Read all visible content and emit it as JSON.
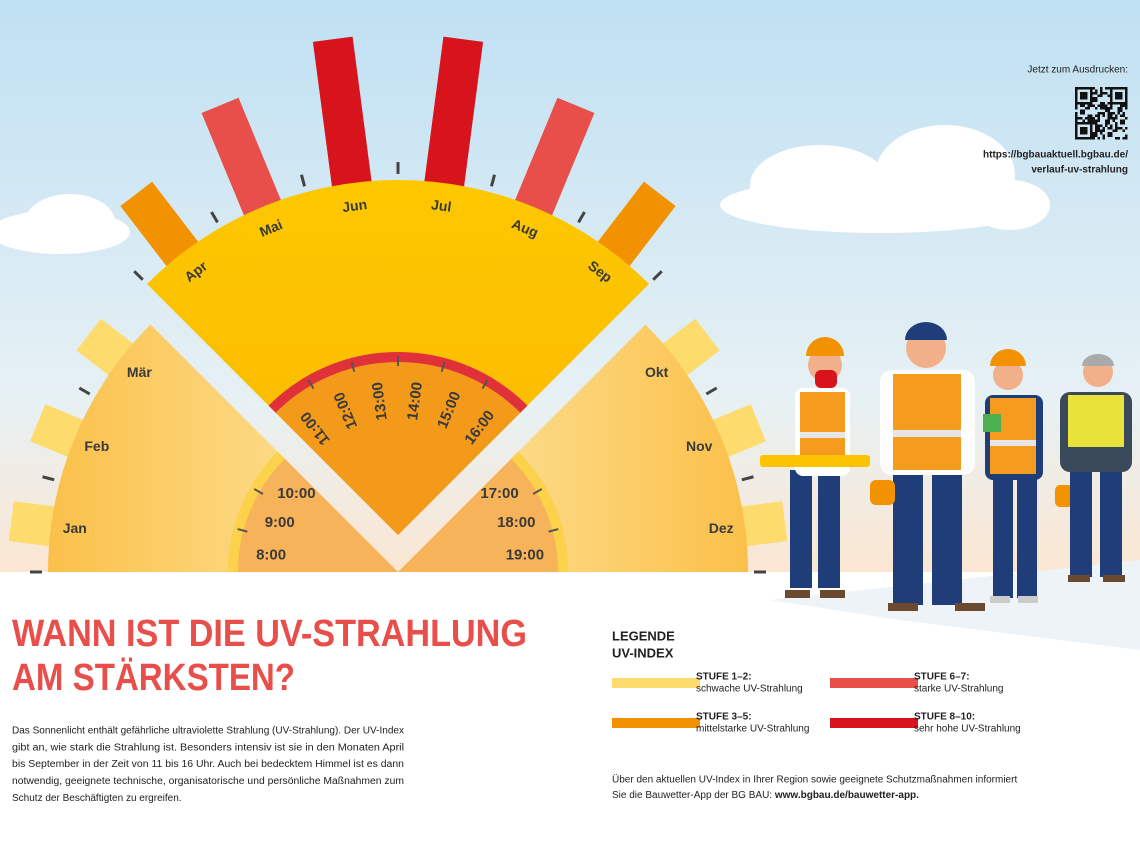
{
  "qr": {
    "caption": "Jetzt zum Ausdrucken:",
    "url_lines": [
      "https://bgbauaktuell.bgbau.de/",
      "verlauf-uv-strahlung"
    ]
  },
  "months": [
    {
      "label": "Jan",
      "color": "#fddb6d"
    },
    {
      "label": "Feb",
      "color": "#fddb6d"
    },
    {
      "label": "Mär",
      "color": "#fddb6d"
    },
    {
      "label": "Apr",
      "color": "#f39200"
    },
    {
      "label": "Mai",
      "color": "#e84e4a"
    },
    {
      "label": "Jun",
      "color": "#d7141c"
    },
    {
      "label": "Jul",
      "color": "#d7141c"
    },
    {
      "label": "Aug",
      "color": "#e84e4a"
    },
    {
      "label": "Sep",
      "color": "#f39200"
    },
    {
      "label": "Okt",
      "color": "#fddb6d"
    },
    {
      "label": "Nov",
      "color": "#fddb6d"
    },
    {
      "label": "Dez",
      "color": "#fddb6d"
    }
  ],
  "hours": [
    "8:00",
    "9:00",
    "10:00",
    "11:00",
    "12:00",
    "13:00",
    "14:00",
    "15:00",
    "16:00",
    "17:00",
    "18:00",
    "19:00"
  ],
  "title_lines": [
    "WANN IST DIE UV-STRAHLUNG",
    "AM STÄRKSTEN?"
  ],
  "body_lines": [
    "Das Sonnenlicht enthält gefährliche ultraviolette Strahlung (UV-Strahlung). Der UV-Index",
    "gibt an, wie stark die Strahlung ist. Besonders intensiv ist sie in den Monaten April",
    "bis September in der Zeit von 11 bis 16 Uhr. Auch bei bedecktem Himmel ist es dann",
    "notwendig, geeignete technische, organisatorische und persönliche Maßnahmen zum",
    "Schutz der Beschäftigten zu ergreifen."
  ],
  "legend": {
    "title_lines": [
      "LEGENDE",
      "UV-INDEX"
    ],
    "items": [
      {
        "level": "STUFE 1–2:",
        "text": "schwache UV-Strahlung",
        "color": "#fddb6d"
      },
      {
        "level": "STUFE 3–5:",
        "text": "mittelstarke UV-Strahlung",
        "color": "#f39200"
      },
      {
        "level": "STUFE 6–7:",
        "text": "starke UV-Strahlung",
        "color": "#e84e4a"
      },
      {
        "level": "STUFE 8–10:",
        "text": "sehr hohe UV-Strahlung",
        "color": "#d7141c"
      }
    ]
  },
  "footer": {
    "line1": "Über den aktuellen UV-Index in Ihrer Region sowie geeignete Schutzmaßnahmen informiert",
    "line2": "Sie die Bauwetter-App der BG BAU: ",
    "link": "www.bgbau.de/bauwetter-app."
  }
}
